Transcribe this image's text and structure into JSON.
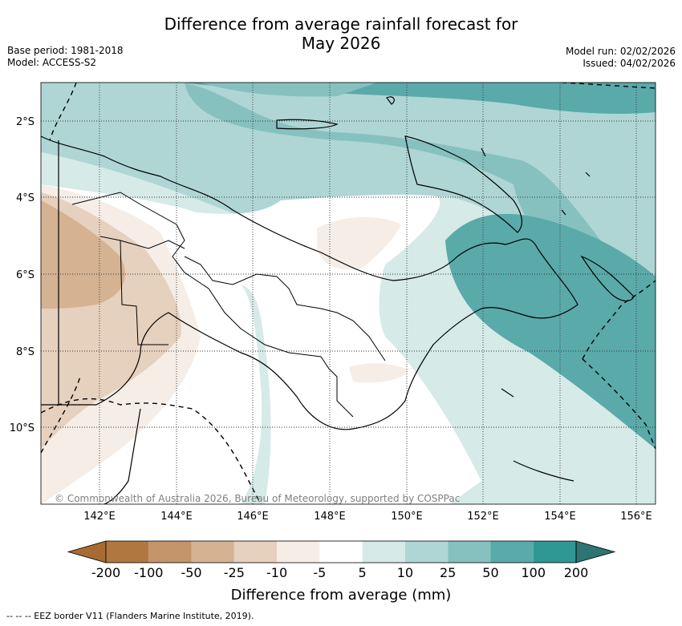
{
  "header": {
    "title_line1": "Difference from average rainfall forecast for",
    "title_line2": "May 2026",
    "base_period": "Base period: 1981-2018",
    "model": "Model: ACCESS-S2",
    "model_run": "Model run: 02/02/2026",
    "issued": "Issued: 04/02/2026"
  },
  "map": {
    "lat_labels": [
      "2°S",
      "4°S",
      "6°S",
      "8°S",
      "10°S"
    ],
    "lon_labels": [
      "142°E",
      "144°E",
      "146°E",
      "148°E",
      "150°E",
      "152°E",
      "154°E",
      "156°E"
    ],
    "credit": "© Commonwealth of Australia 2026, Bureau of Meteorology, supported by COSPPac",
    "gridlines": "dotted",
    "border_style": "dashed"
  },
  "colorbar": {
    "ticks": [
      "-200",
      "-100",
      "-50",
      "-25",
      "-10",
      "-5",
      "5",
      "10",
      "25",
      "50",
      "100",
      "200"
    ],
    "colors": [
      "#a86b32",
      "#b07840",
      "#c4946a",
      "#d4b292",
      "#e6d0be",
      "#f5ede6",
      "#ffffff",
      "#d6eae8",
      "#afd6d5",
      "#86c1c0",
      "#5aaaaa",
      "#2f9794",
      "#2d7573"
    ],
    "title": "Difference from average (mm)"
  },
  "footnote": "--  --  -- EEZ border V11 (Flanders Marine Institute, 2019)."
}
